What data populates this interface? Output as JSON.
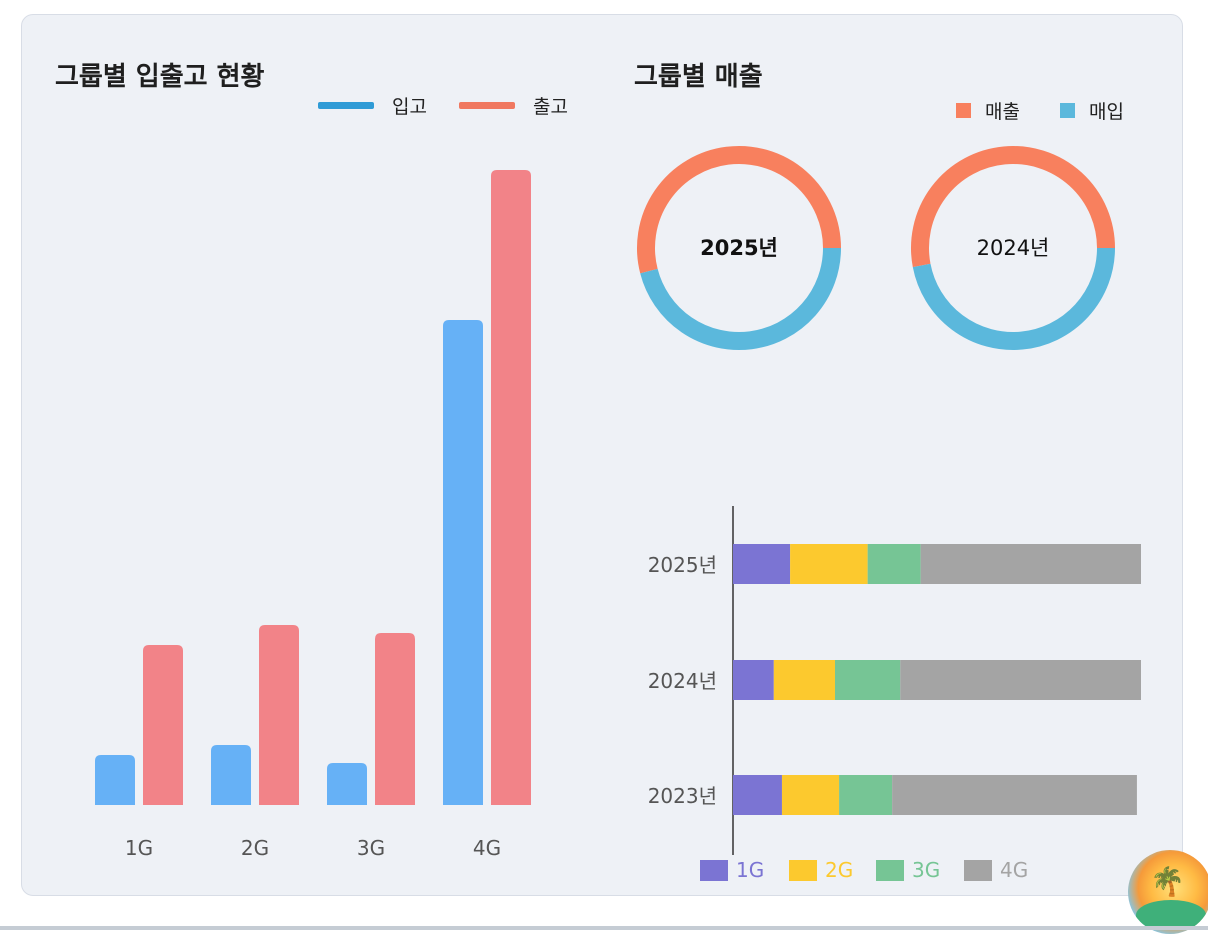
{
  "left_panel": {
    "title": "그룹별 입출고 현황",
    "legend": [
      {
        "label": "입고",
        "color": "#2f9bd6"
      },
      {
        "label": "출고",
        "color": "#f07860"
      }
    ]
  },
  "right_panel": {
    "title": "그룹별 매출",
    "legend": [
      {
        "label": "매출",
        "color": "#f8805e"
      },
      {
        "label": "매입",
        "color": "#5bb8dc"
      }
    ]
  },
  "chart_data": [
    {
      "type": "bar",
      "title": "그룹별 입출고 현황",
      "categories": [
        "1G",
        "2G",
        "3G",
        "4G"
      ],
      "series": [
        {
          "name": "입고",
          "values": [
            50,
            60,
            42,
            485
          ],
          "color": "#5aabf5"
        },
        {
          "name": "출고",
          "values": [
            160,
            180,
            172,
            635
          ],
          "color": "#f27a7e"
        }
      ],
      "ylim": [
        0,
        700
      ],
      "grid": false,
      "legend": "top-right"
    },
    {
      "type": "pie",
      "title": "그룹별 매출",
      "center_label": "2025년",
      "slices": [
        {
          "name": "매출",
          "value": 54,
          "color": "#f8805e"
        },
        {
          "name": "매입",
          "value": 46,
          "color": "#5bb8dc"
        }
      ],
      "legend": "top-right"
    },
    {
      "type": "pie",
      "center_label": "2024년",
      "slices": [
        {
          "name": "매출",
          "value": 53,
          "color": "#f8805e"
        },
        {
          "name": "매입",
          "value": 47,
          "color": "#5bb8dc"
        }
      ]
    },
    {
      "type": "bar",
      "orientation": "horizontal",
      "stacked": true,
      "categories": [
        "2025년",
        "2024년",
        "2023년"
      ],
      "series": [
        {
          "name": "1G",
          "values": [
            14,
            10,
            12
          ],
          "color": "#7b74d3"
        },
        {
          "name": "2G",
          "values": [
            19,
            15,
            14
          ],
          "color": "#fcc92e"
        },
        {
          "name": "3G",
          "values": [
            13,
            16,
            13
          ],
          "color": "#76c595"
        },
        {
          "name": "4G",
          "values": [
            54,
            59,
            60
          ],
          "color": "#a4a4a4"
        }
      ],
      "xlim": [
        0,
        100
      ],
      "legend": "bottom"
    }
  ]
}
